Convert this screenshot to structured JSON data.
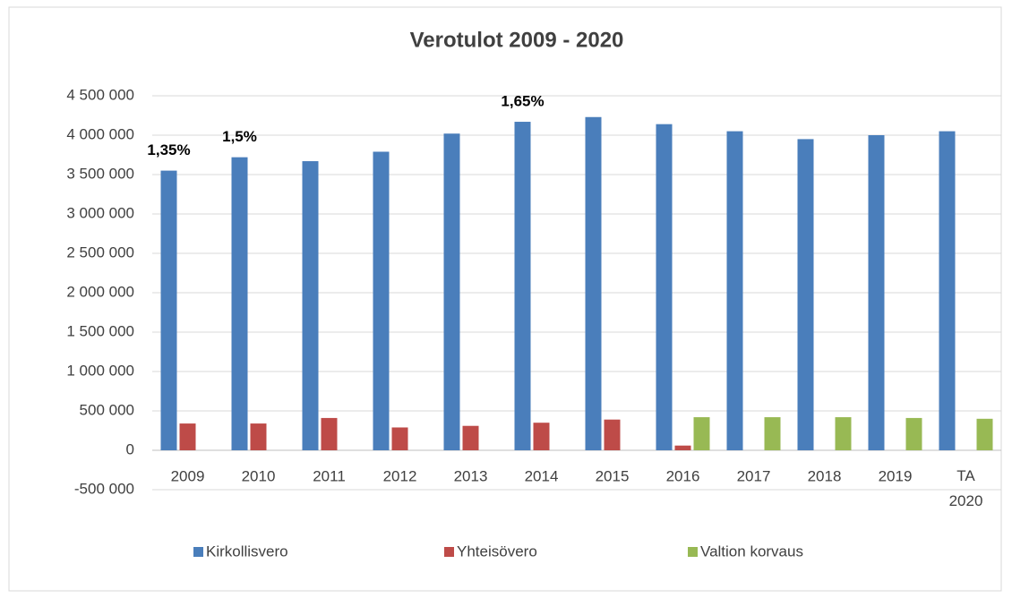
{
  "chart_data": {
    "type": "bar",
    "title": "Verotulot 2009 - 2020",
    "categories": [
      "2009",
      "2010",
      "2011",
      "2012",
      "2013",
      "2014",
      "2015",
      "2016",
      "2017",
      "2018",
      "2019",
      "TA 2020"
    ],
    "series": [
      {
        "name": "Kirkollisvero",
        "color": "#4a7ebb",
        "values": [
          3550000,
          3720000,
          3670000,
          3790000,
          4020000,
          4170000,
          4230000,
          4140000,
          4050000,
          3950000,
          4000000,
          4050000
        ]
      },
      {
        "name": "Yhteisövero",
        "color": "#be4b48",
        "values": [
          340000,
          340000,
          410000,
          290000,
          310000,
          350000,
          390000,
          60000,
          null,
          null,
          null,
          null
        ]
      },
      {
        "name": "Valtion korvaus",
        "color": "#98b954",
        "values": [
          null,
          null,
          null,
          null,
          null,
          null,
          null,
          420000,
          420000,
          420000,
          410000,
          400000
        ]
      }
    ],
    "rate_labels": [
      "1,35%",
      "1,5%",
      null,
      null,
      null,
      "1,65%",
      null,
      null,
      null,
      null,
      null,
      null
    ],
    "ylim": [
      -500000,
      4500000
    ],
    "yticks": [
      {
        "value": -500000,
        "label": "-500 000"
      },
      0,
      {
        "value": 500000,
        "label": "500 000"
      },
      {
        "value": 1000000,
        "label": "1 000 000"
      },
      {
        "value": 1500000,
        "label": "1 500 000"
      },
      {
        "value": 2000000,
        "label": "2 000 000"
      },
      {
        "value": 2500000,
        "label": "2 500 000"
      },
      {
        "value": 3000000,
        "label": "3 000 000"
      },
      {
        "value": 3500000,
        "label": "3 500 000"
      },
      {
        "value": 4000000,
        "label": "4 000 000"
      },
      {
        "value": 4500000,
        "label": "4 500 000"
      }
    ],
    "grid": true,
    "legend": "bottom"
  }
}
